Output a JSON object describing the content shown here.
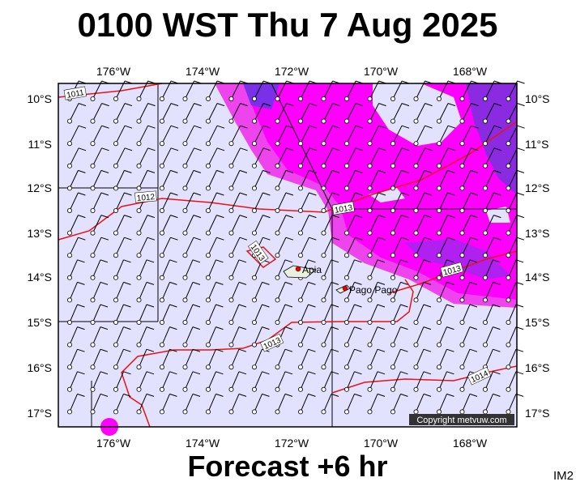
{
  "header": {
    "title": "0100 WST Thu 7 Aug 2025"
  },
  "map": {
    "lon_labels": [
      "176°W",
      "174°W",
      "172°W",
      "170°W",
      "168°W"
    ],
    "lat_labels": [
      "10°S",
      "11°S",
      "12°S",
      "13°S",
      "14°S",
      "15°S",
      "16°S",
      "17°S"
    ],
    "places": [
      "Apia",
      "Pago Pago"
    ],
    "isobar_labels": [
      "1011",
      "1012",
      "1013",
      "1013",
      "1013",
      "1013",
      "1014"
    ],
    "copyright": "Copyright metvuw.com"
  },
  "footer": {
    "forecast": "Forecast +6 hr",
    "code": "IM2"
  }
}
